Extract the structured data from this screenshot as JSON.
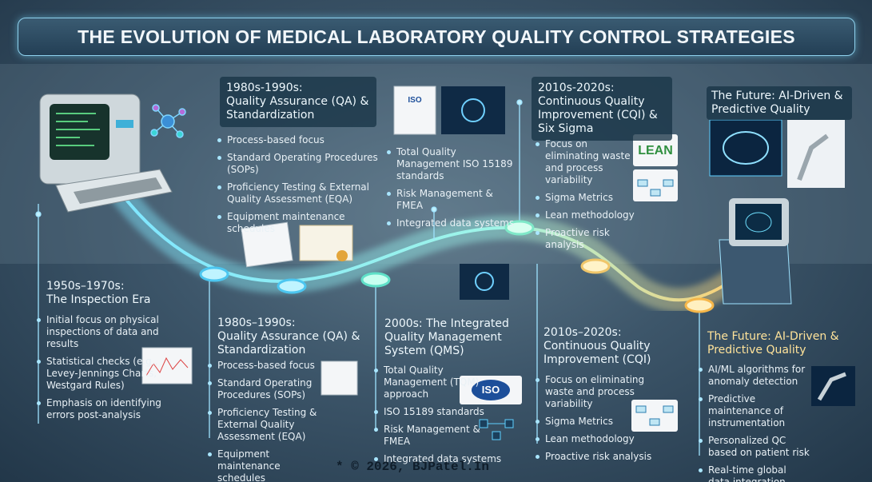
{
  "title": "THE EVOLUTION OF MEDICAL LABORATORY QUALITY CONTROL STRATEGIES",
  "top": [
    {
      "era": "1980s-1990s:",
      "title": "Quality Assurance (QA) & Standardization",
      "bullets": [
        "Process-based focus",
        "Standard Operating Procedures (SOPs)",
        "Proficiency Testing & External Quality Assessment (EQA)",
        "Equipment maintenance schedules"
      ]
    },
    {
      "bullets": [
        "Total Quality Management ISO 15189 standards",
        "Risk Management & FMEA",
        "Integrated data systems"
      ]
    },
    {
      "era": "2010s-2020s:",
      "title": "Continuous Quality Improvement (CQI) & Six Sigma",
      "bullets": [
        "Focus on eliminating waste and process variability",
        "Sigma Metrics",
        "Lean methodology",
        "Proactive risk analysis"
      ]
    },
    {
      "title": "The Future: AI-Driven & Predictive Quality"
    }
  ],
  "bottom": [
    {
      "era": "1950s–1970s:",
      "title": "The Inspection Era",
      "bullets": [
        "Initial focus on physical inspections of data and results",
        "Statistical checks (e.g., Levey-Jennings Charts, Westgard Rules)",
        "Emphasis on identifying errors post-analysis"
      ]
    },
    {
      "era": "1980s–1990s:",
      "title": "Quality Assurance (QA) & Standardization",
      "bullets": [
        "Process-based focus",
        "Standard Operating Procedures (SOPs)",
        "Proficiency Testing & External Quality Assessment (EQA)",
        "Equipment maintenance schedules"
      ]
    },
    {
      "title": "2000s: The Integrated Quality Management System (QMS)",
      "bullets": [
        "Total Quality Management (TQM) approach",
        "ISO 15189 standards",
        "Risk Management & FMEA",
        "Integrated data systems"
      ]
    },
    {
      "era": "2010s–2020s:",
      "title": "Continuous Quality Improvement (CQI)",
      "bullets": [
        "Focus on eliminating waste and process variability",
        "Sigma Metrics",
        "Lean methodology",
        "Proactive risk analysis"
      ]
    },
    {
      "title": "The Future: AI-Driven & Predictive Quality",
      "bullets": [
        "AI/ML algorithms for anomaly detection",
        "Predictive maintenance of instrumentation",
        "Personalized QC based on patient risk",
        "Real-time global data integration"
      ]
    }
  ],
  "icons": [
    "ISO",
    "LEAN",
    "ISO"
  ],
  "footer": "* © 2026, BJPatel.In"
}
